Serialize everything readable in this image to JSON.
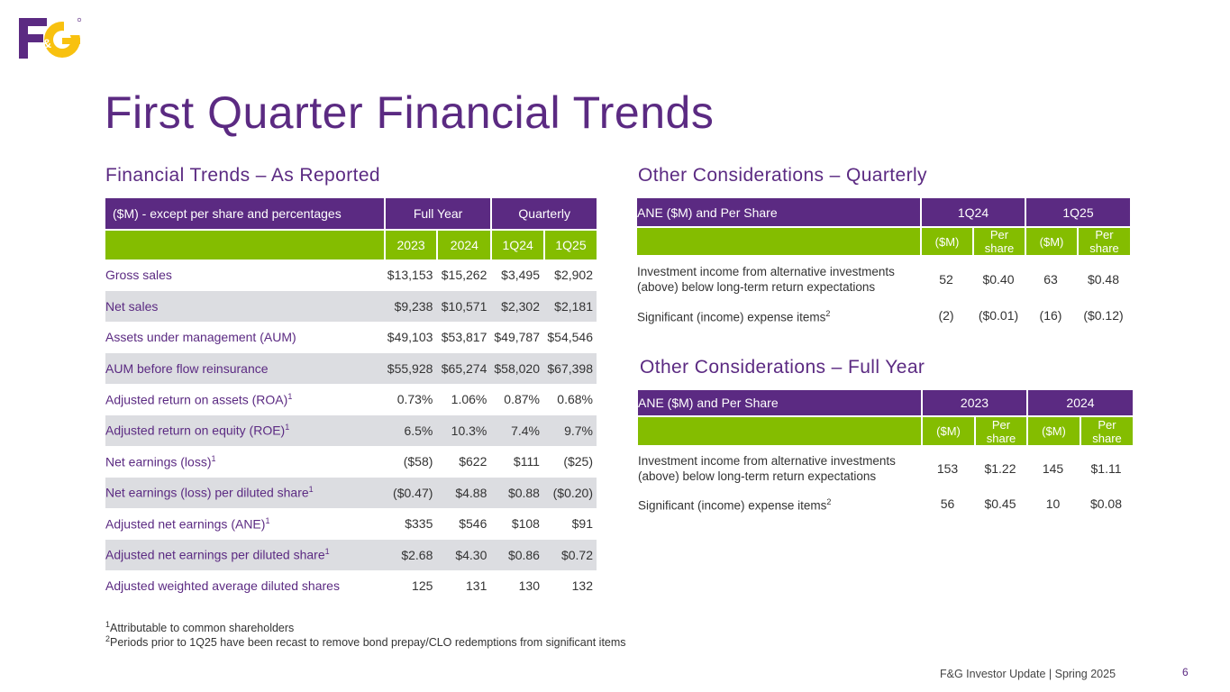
{
  "logo": {
    "text": "F&G",
    "brand_purple": "#5b2a82",
    "brand_yellow": "#f8c10f"
  },
  "page_title": "First Quarter Financial Trends",
  "reported": {
    "title": "Financial Trends – As Reported",
    "header": {
      "label": "($M) - except per share and percentages",
      "full_year": "Full Year",
      "quarterly": "Quarterly"
    },
    "periods": [
      "2023",
      "2024",
      "1Q24",
      "1Q25"
    ],
    "rows": [
      {
        "label": "Gross sales",
        "sup": "",
        "values": [
          "$13,153",
          "$15,262",
          "$3,495",
          "$2,902"
        ]
      },
      {
        "label": "Net sales",
        "sup": "",
        "values": [
          "$9,238",
          "$10,571",
          "$2,302",
          "$2,181"
        ]
      },
      {
        "label": "Assets under management (AUM)",
        "sup": "",
        "values": [
          "$49,103",
          "$53,817",
          "$49,787",
          "$54,546"
        ]
      },
      {
        "label": "AUM before flow reinsurance",
        "sup": "",
        "values": [
          "$55,928",
          "$65,274",
          "$58,020",
          "$67,398"
        ]
      },
      {
        "label": "Adjusted return on assets (ROA)",
        "sup": "1",
        "values": [
          "0.73%",
          "1.06%",
          "0.87%",
          "0.68%"
        ]
      },
      {
        "label": "Adjusted return on equity (ROE)",
        "sup": "1",
        "values": [
          "6.5%",
          "10.3%",
          "7.4%",
          "9.7%"
        ]
      },
      {
        "label": "Net earnings (loss)",
        "sup": "1",
        "values": [
          "($58)",
          "$622",
          "$111",
          "($25)"
        ]
      },
      {
        "label": "Net earnings (loss) per diluted share",
        "sup": "1",
        "values": [
          "($0.47)",
          "$4.88",
          "$0.88",
          "($0.20)"
        ]
      },
      {
        "label": "Adjusted net earnings (ANE)",
        "sup": "1",
        "values": [
          "$335",
          "$546",
          "$108",
          "$91"
        ]
      },
      {
        "label": "Adjusted net earnings per diluted share",
        "sup": "1",
        "values": [
          "$2.68",
          "$4.30",
          "$0.86",
          "$0.72"
        ]
      },
      {
        "label": "Adjusted weighted average diluted shares",
        "sup": "",
        "values": [
          "125",
          "131",
          "130",
          "132"
        ]
      }
    ]
  },
  "quarterly": {
    "title": "Other Considerations – Quarterly",
    "header": {
      "label": "ANE ($M) and Per Share",
      "p1": "1Q24",
      "p2": "1Q25"
    },
    "sub": {
      "m": "($M)",
      "per_share": "Per share"
    },
    "rows": [
      {
        "label": "Investment income from alternative investments (above) below long-term return expectations",
        "sup": "",
        "values": [
          "52",
          "$0.40",
          "63",
          "$0.48"
        ]
      },
      {
        "label": "Significant (income) expense items",
        "sup": "2",
        "values": [
          "(2)",
          "($0.01)",
          "(16)",
          "($0.12)"
        ]
      }
    ]
  },
  "full_year": {
    "title": "Other Considerations – Full Year",
    "header": {
      "label": "ANE ($M) and Per Share",
      "p1": "2023",
      "p2": "2024"
    },
    "sub": {
      "m": "($M)",
      "per_share": "Per share"
    },
    "rows": [
      {
        "label": "Investment income from alternative investments (above) below long-term return expectations",
        "sup": "",
        "values": [
          "153",
          "$1.22",
          "145",
          "$1.11"
        ]
      },
      {
        "label": "Significant (income) expense items",
        "sup": "2",
        "values": [
          "56",
          "$0.45",
          "10",
          "$0.08"
        ]
      }
    ]
  },
  "footnotes": [
    {
      "sup": "1",
      "text": "Attributable to common shareholders"
    },
    {
      "sup": "2",
      "text": "Periods prior to 1Q25 have been recast to remove bond prepay/CLO redemptions from significant items"
    }
  ],
  "footer": {
    "text": "F&G Investor Update | Spring 2025",
    "page": "6"
  }
}
